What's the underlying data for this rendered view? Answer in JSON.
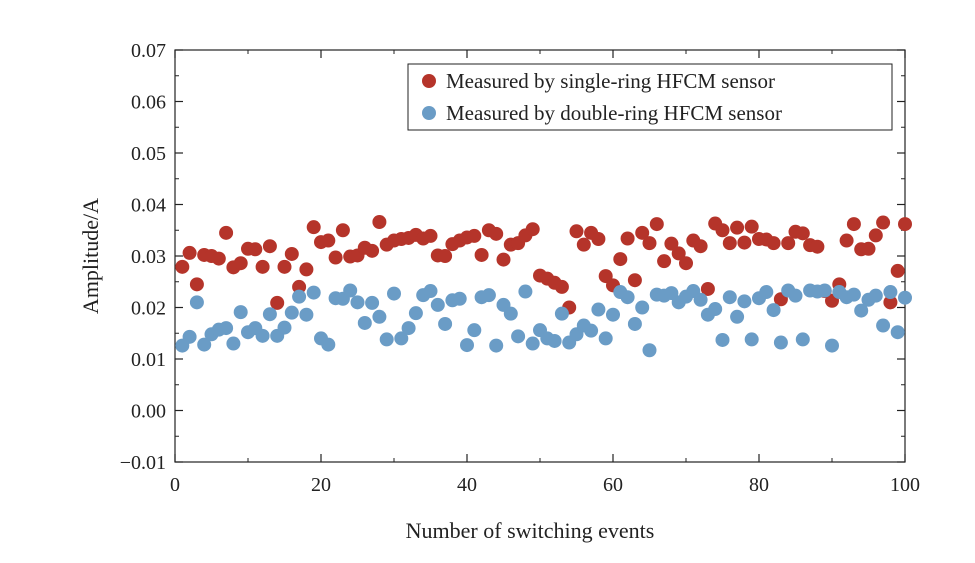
{
  "chart_data": {
    "type": "scatter",
    "title": "",
    "xlabel": "Number of switching events",
    "ylabel": "Amplitude/A",
    "xlim": [
      0,
      100
    ],
    "ylim": [
      -0.01,
      0.07
    ],
    "x_ticks": [
      0,
      20,
      40,
      60,
      80,
      100
    ],
    "x_tick_labels": [
      "0",
      "20",
      "40",
      "60",
      "80",
      "100"
    ],
    "y_ticks": [
      -0.01,
      0.0,
      0.01,
      0.02,
      0.03,
      0.04,
      0.05,
      0.06,
      0.07
    ],
    "y_tick_labels": [
      "−0.01",
      "0.00",
      "0.01",
      "0.02",
      "0.03",
      "0.04",
      "0.05",
      "0.06",
      "0.07"
    ],
    "grid": false,
    "legend_position": "top-right",
    "series": [
      {
        "name": "Measured by single-ring HFCM sensor",
        "color": "#b5342a",
        "x": [
          1,
          2,
          3,
          4,
          5,
          6,
          7,
          8,
          9,
          10,
          11,
          12,
          13,
          14,
          15,
          16,
          17,
          18,
          19,
          20,
          21,
          22,
          23,
          24,
          25,
          26,
          27,
          28,
          29,
          30,
          31,
          32,
          33,
          34,
          35,
          36,
          37,
          38,
          39,
          40,
          41,
          42,
          43,
          44,
          45,
          46,
          47,
          48,
          49,
          50,
          51,
          52,
          53,
          54,
          55,
          56,
          57,
          58,
          59,
          60,
          61,
          62,
          63,
          64,
          65,
          66,
          67,
          68,
          69,
          70,
          71,
          72,
          73,
          74,
          75,
          76,
          77,
          78,
          79,
          80,
          81,
          82,
          83,
          84,
          85,
          86,
          87,
          88,
          89,
          90,
          91,
          92,
          93,
          94,
          95,
          96,
          97,
          98,
          99,
          100
        ],
        "y": [
          0.0279,
          0.0306,
          0.0245,
          0.0302,
          0.03,
          0.0295,
          0.0345,
          0.0278,
          0.0286,
          0.0314,
          0.0313,
          0.0279,
          0.0319,
          0.0209,
          0.0279,
          0.0304,
          0.024,
          0.0274,
          0.0356,
          0.0327,
          0.033,
          0.0297,
          0.035,
          0.0299,
          0.0301,
          0.0316,
          0.031,
          0.0366,
          0.0322,
          0.033,
          0.0333,
          0.0335,
          0.0341,
          0.0334,
          0.0339,
          0.0301,
          0.03,
          0.0323,
          0.033,
          0.0336,
          0.0339,
          0.0302,
          0.035,
          0.0343,
          0.0293,
          0.0322,
          0.0325,
          0.034,
          0.0352,
          0.0262,
          0.0256,
          0.0248,
          0.024,
          0.02,
          0.0348,
          0.0322,
          0.0345,
          0.0333,
          0.0261,
          0.0243,
          0.0294,
          0.0334,
          0.0253,
          0.0345,
          0.0325,
          0.0362,
          0.029,
          0.0324,
          0.0305,
          0.0286,
          0.033,
          0.0319,
          0.0236,
          0.0363,
          0.035,
          0.0325,
          0.0355,
          0.0326,
          0.0357,
          0.0333,
          0.0332,
          0.0325,
          0.0216,
          0.0325,
          0.0347,
          0.0344,
          0.0321,
          0.0318,
          0.0232,
          0.0213,
          0.0245,
          0.033,
          0.0362,
          0.0313,
          0.0314,
          0.034,
          0.0365,
          0.021,
          0.0271,
          0.0362
        ]
      },
      {
        "name": "Measured by double-ring HFCM sensor",
        "color": "#6a9cc6",
        "x": [
          1,
          2,
          3,
          4,
          5,
          6,
          7,
          8,
          9,
          10,
          11,
          12,
          13,
          14,
          15,
          16,
          17,
          18,
          19,
          20,
          21,
          22,
          23,
          24,
          25,
          26,
          27,
          28,
          29,
          30,
          31,
          32,
          33,
          34,
          35,
          36,
          37,
          38,
          39,
          40,
          41,
          42,
          43,
          44,
          45,
          46,
          47,
          48,
          49,
          50,
          51,
          52,
          53,
          54,
          55,
          56,
          57,
          58,
          59,
          60,
          61,
          62,
          63,
          64,
          65,
          66,
          67,
          68,
          69,
          70,
          71,
          72,
          73,
          74,
          75,
          76,
          77,
          78,
          79,
          80,
          81,
          82,
          83,
          84,
          85,
          86,
          87,
          88,
          89,
          90,
          91,
          92,
          93,
          94,
          95,
          96,
          97,
          98,
          99,
          100
        ],
        "y": [
          0.0126,
          0.0143,
          0.021,
          0.0128,
          0.0148,
          0.0157,
          0.016,
          0.013,
          0.0191,
          0.0152,
          0.016,
          0.0145,
          0.0187,
          0.0145,
          0.0161,
          0.019,
          0.0221,
          0.0186,
          0.0229,
          0.014,
          0.0128,
          0.0218,
          0.0217,
          0.0233,
          0.021,
          0.017,
          0.0209,
          0.0182,
          0.0138,
          0.0227,
          0.014,
          0.016,
          0.0189,
          0.0224,
          0.0232,
          0.0205,
          0.0168,
          0.0214,
          0.0217,
          0.0127,
          0.0156,
          0.022,
          0.0224,
          0.0126,
          0.0205,
          0.0188,
          0.0144,
          0.0231,
          0.013,
          0.0156,
          0.014,
          0.0135,
          0.0188,
          0.0132,
          0.0148,
          0.0165,
          0.0155,
          0.0196,
          0.014,
          0.0186,
          0.023,
          0.022,
          0.0168,
          0.02,
          0.0117,
          0.0225,
          0.0223,
          0.0228,
          0.021,
          0.0221,
          0.0232,
          0.0215,
          0.0186,
          0.0197,
          0.0137,
          0.022,
          0.0182,
          0.0212,
          0.0138,
          0.0218,
          0.023,
          0.0195,
          0.0132,
          0.0233,
          0.0223,
          0.0138,
          0.0233,
          0.0231,
          0.0233,
          0.0126,
          0.023,
          0.022,
          0.0225,
          0.0194,
          0.0215,
          0.0223,
          0.0165,
          0.023,
          0.0152,
          0.0219
        ]
      }
    ]
  }
}
